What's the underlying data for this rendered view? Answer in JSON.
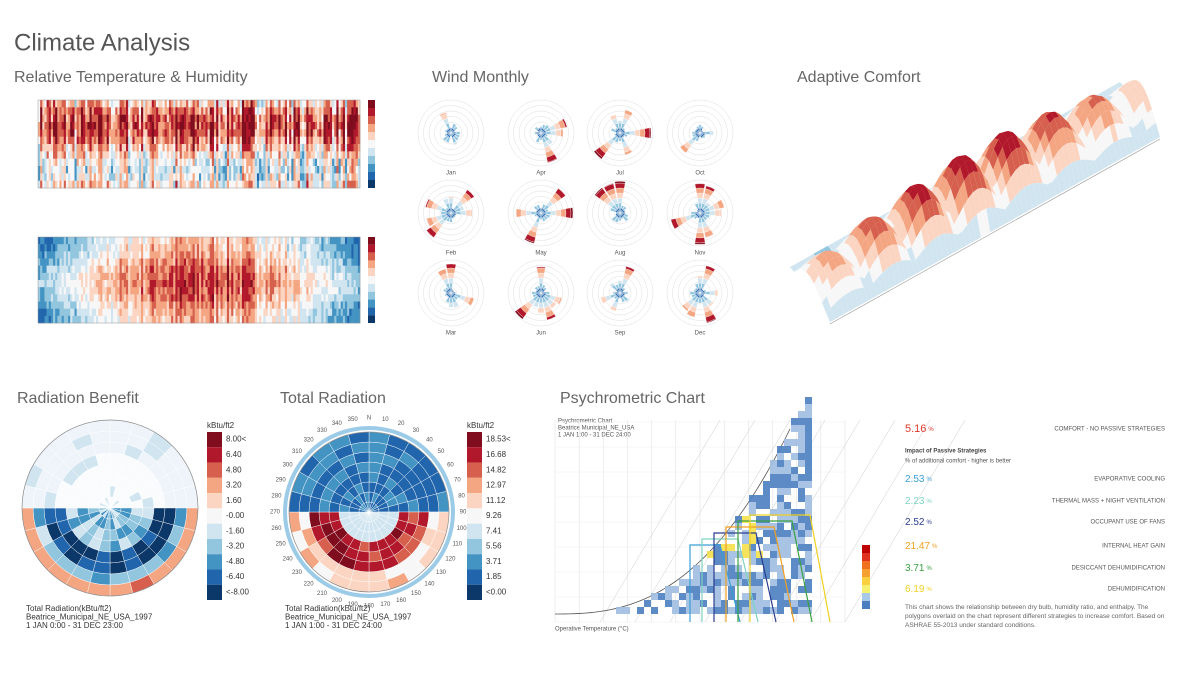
{
  "header": {
    "title": "Climate Analysis"
  },
  "panels": {
    "temp_humidity": {
      "title": "Relative Temperature & Humidity"
    },
    "wind": {
      "title": "Wind Monthly",
      "months": [
        "Jan",
        "Apr",
        "Jul",
        "Oct",
        "Feb",
        "May",
        "Aug",
        "Nov",
        "Mar",
        "Jun",
        "Sep",
        "Dec"
      ]
    },
    "adaptive": {
      "title": "Adaptive Comfort"
    },
    "radiation_benefit": {
      "title": "Radiation Benefit",
      "legend": {
        "unit": "kBtu/ft2",
        "labels": [
          "8.00<",
          "6.40",
          "4.80",
          "3.20",
          "1.60",
          "-0.00",
          "-1.60",
          "-3.20",
          "-4.80",
          "-6.40",
          "<-8.00"
        ],
        "colors": [
          "#7f0d1e",
          "#b2182b",
          "#d6604d",
          "#f4a582",
          "#fbd5c2",
          "#f7f7f7",
          "#d1e5f0",
          "#92c5de",
          "#4393c3",
          "#2166ac",
          "#0b3769"
        ]
      },
      "caption": [
        "Total Radiation(kBtu/ft2)",
        "Beatrice_Municipal_NE_USA_1997",
        "1 JAN 0:00 - 31 DEC 23:00"
      ]
    },
    "total_radiation": {
      "title": "Total Radiation",
      "legend": {
        "unit": "kBtu/ft2",
        "labels": [
          "18.53<",
          "16.68",
          "14.82",
          "12.97",
          "11.12",
          "9.26",
          "7.41",
          "5.56",
          "3.71",
          "1.85",
          "<0.00"
        ],
        "colors": [
          "#7f0d1e",
          "#b2182b",
          "#d6604d",
          "#f4a582",
          "#fbd5c2",
          "#f7f7f7",
          "#d1e5f0",
          "#92c5de",
          "#4393c3",
          "#2166ac",
          "#0b3769"
        ]
      },
      "caption": [
        "Total Radiation(kBtu/ft2)",
        "Beatrice_Municipal_NE_USA_1997",
        "1 JAN 1:00 - 31 DEC 24:00"
      ],
      "compass": [
        "N",
        "10",
        "20",
        "30",
        "40",
        "50",
        "60",
        "70",
        "80",
        "90",
        "100",
        "110",
        "120",
        "130",
        "140",
        "150",
        "160",
        "170",
        "180",
        "190",
        "200",
        "210",
        "220",
        "230",
        "240",
        "250",
        "260",
        "270",
        "280",
        "290",
        "300",
        "310",
        "320",
        "330",
        "340",
        "350"
      ]
    },
    "psychrometric": {
      "title": "Psychrometric Chart",
      "header": [
        "Psychrometric Chart",
        "Beatrice Municipal_NE_USA",
        "1 JAN 1:00 - 31 DEC 24:00"
      ],
      "x_label": "Operative Temperature (°C)",
      "comfort": {
        "value": 5.16,
        "unit": "%",
        "label": "COMFORT - NO PASSIVE STRATEGIES",
        "color": "#e0392b"
      },
      "strategies_title": "Impact of Passive Strategies",
      "strategies_subtitle": "% of additional comfort - higher is better",
      "strategies": [
        {
          "value": 2.53,
          "unit": "%",
          "label": "EVAPORATIVE COOLING",
          "color": "#3a9fd8"
        },
        {
          "value": 2.23,
          "unit": "%",
          "label": "THERMAL MASS + NIGHT VENTILATION",
          "color": "#7fd3c2"
        },
        {
          "value": 2.52,
          "unit": "%",
          "label": "OCCUPANT USE OF FANS",
          "color": "#2b3d8f"
        },
        {
          "value": 21.47,
          "unit": "%",
          "label": "INTERNAL HEAT GAIN",
          "color": "#f0a020"
        },
        {
          "value": 3.71,
          "unit": "%",
          "label": "DESICCANT DEHUMIDIFICATION",
          "color": "#3aa040"
        },
        {
          "value": 6.19,
          "unit": "%",
          "label": "DEHUMIDIFICATION",
          "color": "#f0d020"
        }
      ],
      "note": "This chart shows the relationship between dry bulb, humidity ratio, and enthalpy. The polygons overlaid on the chart represent different strategies to increase comfort. Based on ASHRAE 55-2013 under standard conditions."
    }
  }
}
